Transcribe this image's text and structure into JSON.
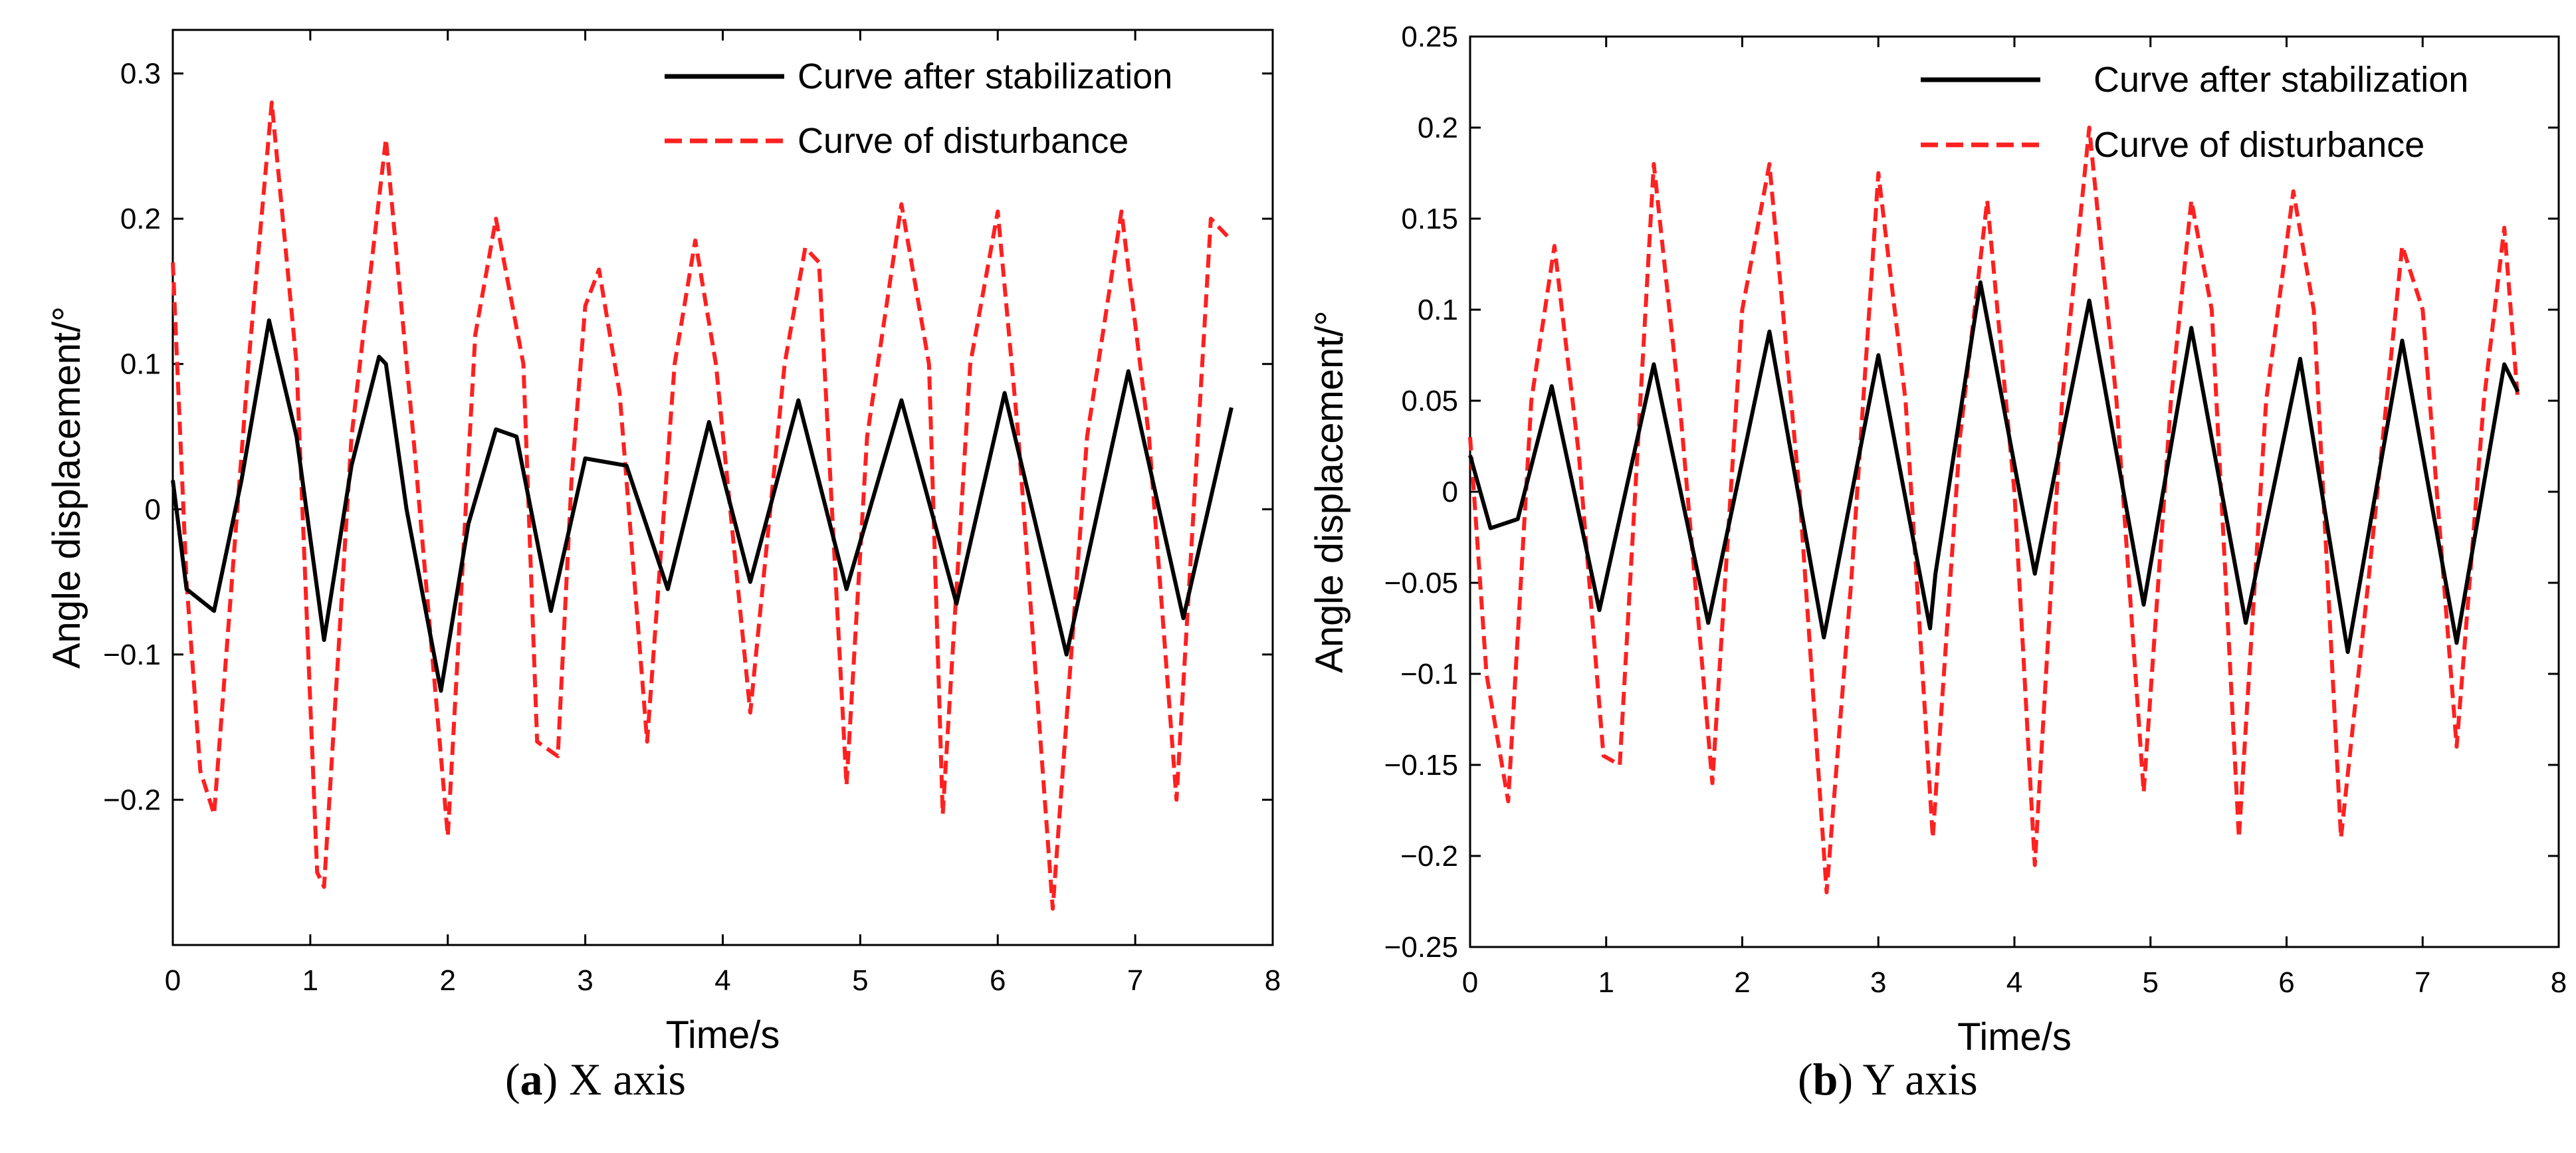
{
  "chart_data": [
    {
      "type": "line",
      "panel": "a",
      "caption_label": "a",
      "caption_text": ") X axis",
      "caption_open": "(",
      "xlabel": "Time/s",
      "ylabel": "Angle displacement/°",
      "xlim": [
        0,
        8
      ],
      "ylim": [
        -0.3,
        0.33
      ],
      "xticks": [
        0,
        1,
        2,
        3,
        4,
        5,
        6,
        7,
        8
      ],
      "xtick_labels": [
        "0",
        "1",
        "2",
        "3",
        "4",
        "5",
        "6",
        "7",
        "8"
      ],
      "yticks": [
        -0.2,
        -0.1,
        0,
        0.1,
        0.2,
        0.3
      ],
      "ytick_labels": [
        "−0.2",
        "−0.1",
        "0",
        "0.1",
        "0.2",
        "0.3"
      ],
      "legend_position": "top-right",
      "series": [
        {
          "name": "Curve after stabilization",
          "color": "#000000",
          "style": "solid",
          "x": [
            0,
            0.1,
            0.3,
            0.5,
            0.7,
            0.9,
            1.1,
            1.3,
            1.5,
            1.55,
            1.7,
            1.95,
            2.15,
            2.35,
            2.5,
            2.75,
            3.0,
            3.3,
            3.6,
            3.9,
            4.2,
            4.55,
            4.9,
            5.3,
            5.7,
            6.05,
            6.5,
            6.95,
            7.35,
            7.7
          ],
          "values": [
            0.02,
            -0.055,
            -0.07,
            0.02,
            0.13,
            0.05,
            -0.09,
            0.03,
            0.105,
            0.1,
            0.0,
            -0.125,
            -0.01,
            0.055,
            0.05,
            -0.07,
            0.035,
            0.03,
            -0.055,
            0.06,
            -0.05,
            0.075,
            -0.055,
            0.075,
            -0.065,
            0.08,
            -0.1,
            0.095,
            -0.075,
            0.07
          ]
        },
        {
          "name": "Curve of disturbance",
          "color": "#ff2020",
          "style": "dashed",
          "x": [
            0,
            0.1,
            0.2,
            0.3,
            0.55,
            0.72,
            0.9,
            1.05,
            1.1,
            1.3,
            1.55,
            1.75,
            2.0,
            2.2,
            2.35,
            2.55,
            2.65,
            2.8,
            2.9,
            3.0,
            3.1,
            3.25,
            3.45,
            3.65,
            3.8,
            3.95,
            4.2,
            4.45,
            4.6,
            4.7,
            4.9,
            5.05,
            5.3,
            5.5,
            5.6,
            5.8,
            6.0,
            6.15,
            6.4,
            6.65,
            6.9,
            7.1,
            7.3,
            7.55,
            7.7
          ],
          "values": [
            0.17,
            -0.05,
            -0.18,
            -0.21,
            0.1,
            0.28,
            0.1,
            -0.25,
            -0.26,
            0.05,
            0.255,
            0.05,
            -0.225,
            0.12,
            0.2,
            0.1,
            -0.16,
            -0.17,
            0.02,
            0.14,
            0.165,
            0.08,
            -0.16,
            0.1,
            0.185,
            0.1,
            -0.14,
            0.1,
            0.18,
            0.17,
            -0.19,
            0.05,
            0.21,
            0.1,
            -0.21,
            0.1,
            0.205,
            0.05,
            -0.275,
            0.05,
            0.205,
            0.05,
            -0.2,
            0.2,
            0.185
          ]
        }
      ]
    },
    {
      "type": "line",
      "panel": "b",
      "caption_label": "b",
      "caption_text": ") Y axis",
      "caption_open": "(",
      "xlabel": "Time/s",
      "ylabel": "Angle displacement/°",
      "xlim": [
        0,
        8
      ],
      "ylim": [
        -0.25,
        0.25
      ],
      "xticks": [
        0,
        1,
        2,
        3,
        4,
        5,
        6,
        7,
        8
      ],
      "xtick_labels": [
        "0",
        "1",
        "2",
        "3",
        "4",
        "5",
        "6",
        "7",
        "8"
      ],
      "yticks": [
        -0.25,
        -0.2,
        -0.15,
        -0.1,
        -0.05,
        0,
        0.05,
        0.1,
        0.15,
        0.2,
        0.25
      ],
      "ytick_labels": [
        "−0.25",
        "−0.2",
        "−0.15",
        "−0.1",
        "−0.05",
        "0",
        "0.05",
        "0.1",
        "0.15",
        "0.2",
        "0.25"
      ],
      "legend_position": "top-right",
      "series": [
        {
          "name": "Curve after stabilization",
          "color": "#000000",
          "style": "solid",
          "x": [
            0,
            0.15,
            0.35,
            0.6,
            0.95,
            1.35,
            1.75,
            2.2,
            2.6,
            3.0,
            3.38,
            3.42,
            3.75,
            4.15,
            4.55,
            4.95,
            5.3,
            5.7,
            6.1,
            6.45,
            6.85,
            7.25,
            7.6,
            7.7
          ],
          "values": [
            0.02,
            -0.02,
            -0.015,
            0.058,
            -0.065,
            0.07,
            -0.072,
            0.088,
            -0.08,
            0.075,
            -0.075,
            -0.045,
            0.115,
            -0.045,
            0.105,
            -0.062,
            0.09,
            -0.072,
            0.073,
            -0.088,
            0.083,
            -0.083,
            0.07,
            0.055
          ]
        },
        {
          "name": "Curve of disturbance",
          "color": "#ff2020",
          "style": "dashed",
          "x": [
            0,
            0.12,
            0.28,
            0.45,
            0.62,
            0.8,
            0.98,
            1.1,
            1.35,
            1.55,
            1.78,
            2.0,
            2.2,
            2.42,
            2.62,
            2.8,
            3.0,
            3.2,
            3.4,
            3.6,
            3.8,
            4.0,
            4.15,
            4.35,
            4.55,
            4.75,
            4.95,
            5.15,
            5.3,
            5.45,
            5.65,
            5.85,
            6.05,
            6.2,
            6.4,
            6.6,
            6.85,
            7.0,
            7.25,
            7.45,
            7.6,
            7.7
          ],
          "values": [
            0.03,
            -0.1,
            -0.17,
            0.05,
            0.135,
            0.02,
            -0.145,
            -0.15,
            0.18,
            0.04,
            -0.16,
            0.1,
            0.18,
            0.0,
            -0.22,
            -0.05,
            0.175,
            0.05,
            -0.19,
            0.03,
            0.16,
            0.0,
            -0.205,
            0.05,
            0.2,
            0.05,
            -0.165,
            0.05,
            0.16,
            0.1,
            -0.19,
            0.05,
            0.165,
            0.1,
            -0.19,
            -0.05,
            0.135,
            0.1,
            -0.14,
            0.05,
            0.145,
            0.05
          ]
        }
      ]
    }
  ]
}
